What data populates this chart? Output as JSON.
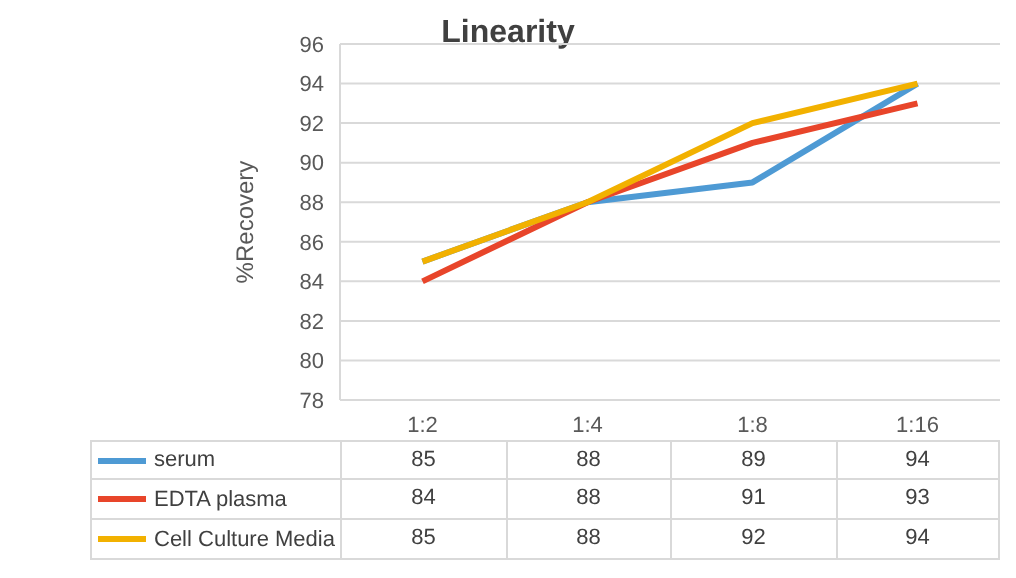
{
  "chart_data": {
    "type": "line",
    "title": "Linearity",
    "ylabel": "%Recovery",
    "categories": [
      "1:2",
      "1:4",
      "1:8",
      "1:16"
    ],
    "series": [
      {
        "name": "serum",
        "color": "#4e9ad4",
        "values": [
          85,
          88,
          89,
          94
        ]
      },
      {
        "name": "EDTA plasma",
        "color": "#e8452a",
        "values": [
          84,
          88,
          91,
          93
        ]
      },
      {
        "name": "Cell Culture Media",
        "color": "#f2b100",
        "values": [
          85,
          88,
          92,
          94
        ]
      }
    ],
    "ylim": [
      78,
      96
    ],
    "yticks": [
      78,
      80,
      82,
      84,
      86,
      88,
      90,
      92,
      94,
      96
    ],
    "grid": "y",
    "legend": "bottom",
    "data_labels": true,
    "marker": "none",
    "line_style": "solid"
  }
}
